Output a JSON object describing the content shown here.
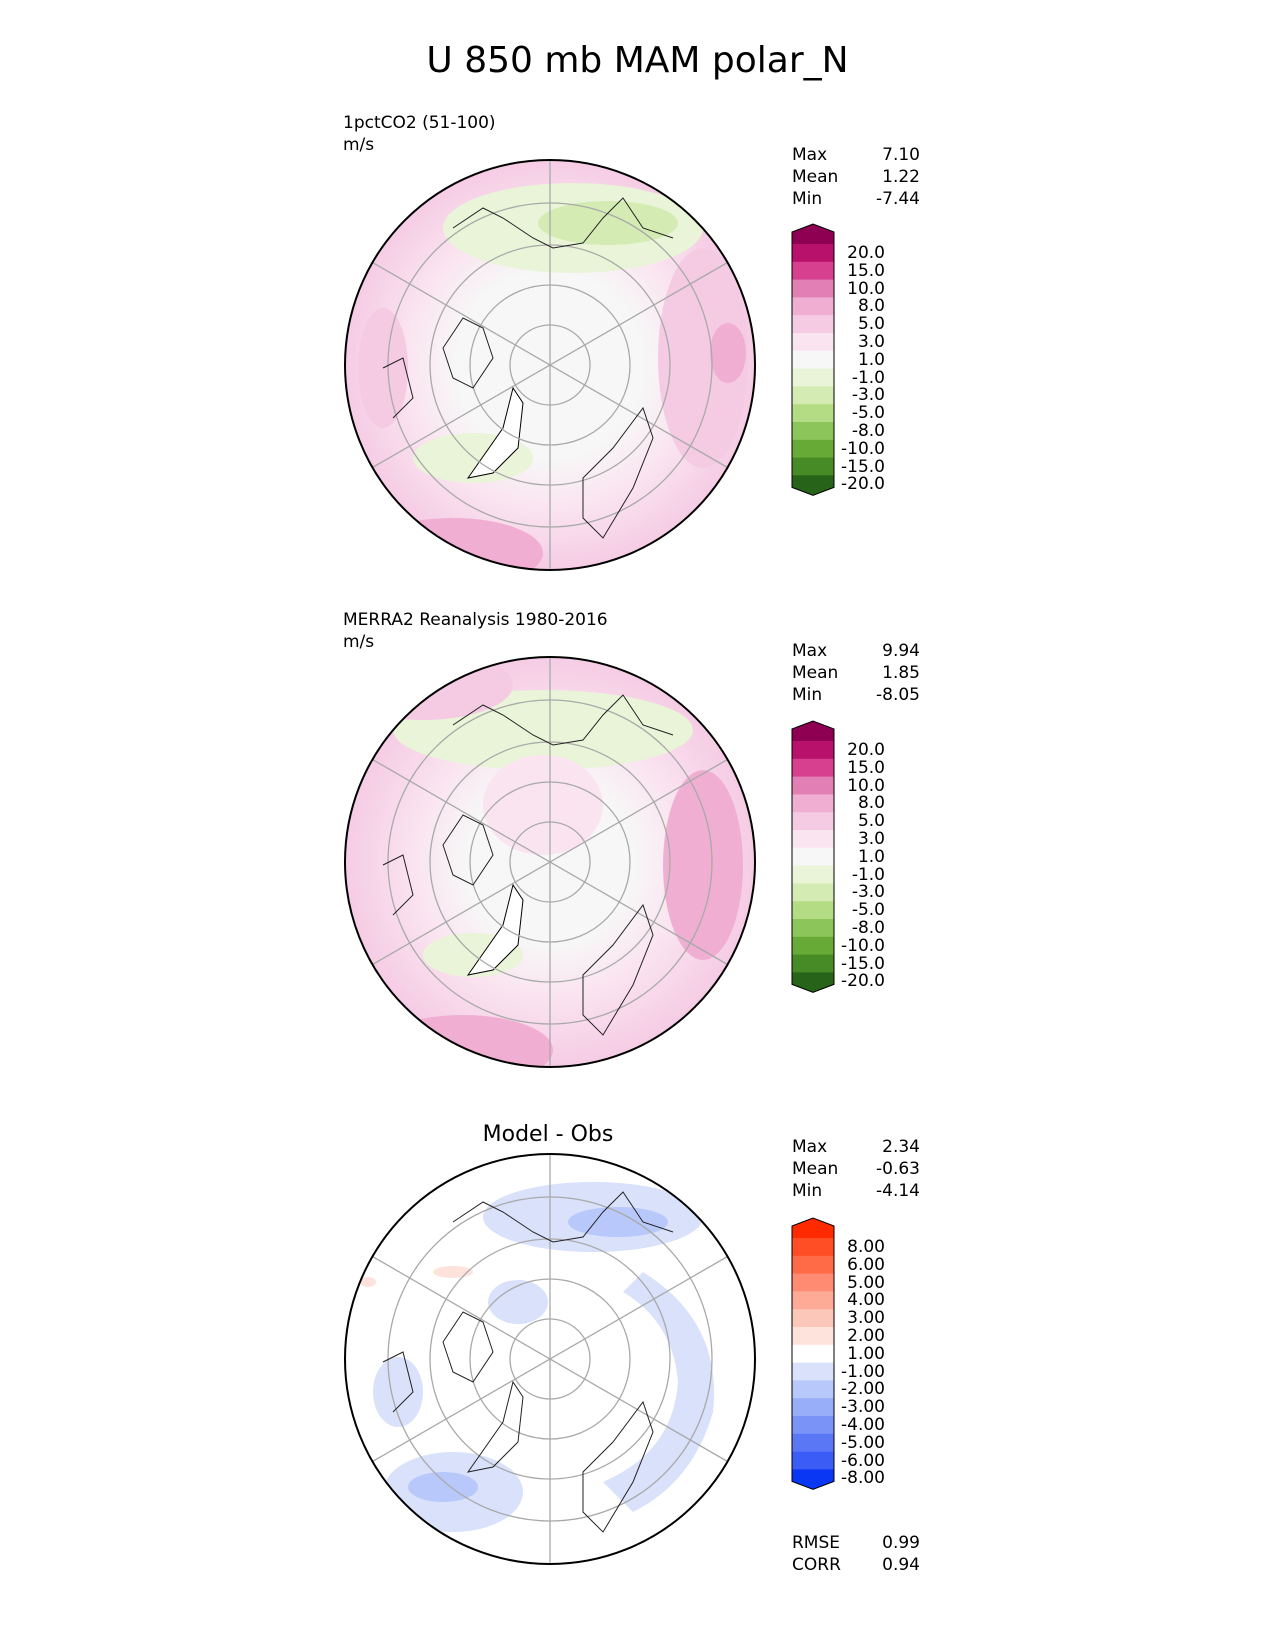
{
  "title": "U 850 mb MAM polar_N",
  "panels": [
    {
      "id": "test",
      "title_line1": "1pctCO2 (51-100)",
      "title_line2": "m/s",
      "stats": [
        {
          "label": "Max",
          "value": "7.10"
        },
        {
          "label": "Mean",
          "value": "1.22"
        },
        {
          "label": "Min",
          "value": "-7.44"
        }
      ],
      "colorbar": {
        "labels": [
          "20.0",
          "15.0",
          "10.0",
          "8.0",
          "5.0",
          "3.0",
          "1.0",
          "-1.0",
          "-3.0",
          "-5.0",
          "-8.0",
          "-10.0",
          "-15.0",
          "-20.0"
        ],
        "colors": [
          "#8e0152",
          "#b8116c",
          "#d6408f",
          "#e27fb5",
          "#f0aed3",
          "#f5cbe4",
          "#fae4f0",
          "#f7f7f7",
          "#e9f4d8",
          "#d4ecb3",
          "#b4dc84",
          "#8cc55a",
          "#67aa36",
          "#468b25",
          "#276419"
        ]
      }
    },
    {
      "id": "reference",
      "title_line1": "MERRA2 Reanalysis 1980-2016",
      "title_line2": "m/s",
      "stats": [
        {
          "label": "Max",
          "value": "9.94"
        },
        {
          "label": "Mean",
          "value": "1.85"
        },
        {
          "label": "Min",
          "value": "-8.05"
        }
      ],
      "colorbar": {
        "labels": [
          "20.0",
          "15.0",
          "10.0",
          "8.0",
          "5.0",
          "3.0",
          "1.0",
          "-1.0",
          "-3.0",
          "-5.0",
          "-8.0",
          "-10.0",
          "-15.0",
          "-20.0"
        ],
        "colors": [
          "#8e0152",
          "#b8116c",
          "#d6408f",
          "#e27fb5",
          "#f0aed3",
          "#f5cbe4",
          "#fae4f0",
          "#f7f7f7",
          "#e9f4d8",
          "#d4ecb3",
          "#b4dc84",
          "#8cc55a",
          "#67aa36",
          "#468b25",
          "#276419"
        ]
      }
    },
    {
      "id": "diff",
      "center_title": "Model - Obs",
      "stats": [
        {
          "label": "Max",
          "value": "2.34"
        },
        {
          "label": "Mean",
          "value": "-0.63"
        },
        {
          "label": "Min",
          "value": "-4.14"
        }
      ],
      "colorbar": {
        "labels": [
          "8.00",
          "6.00",
          "5.00",
          "4.00",
          "3.00",
          "2.00",
          "1.00",
          "-1.00",
          "-2.00",
          "-3.00",
          "-4.00",
          "-5.00",
          "-6.00",
          "-8.00"
        ],
        "colors": [
          "#ff2a00",
          "#ff4d26",
          "#ff6a47",
          "#ff8c72",
          "#fdaa96",
          "#fcc6b8",
          "#fde3db",
          "#ffffff",
          "#d9e1fb",
          "#b9c8fa",
          "#98aef9",
          "#7a93f7",
          "#5a78f6",
          "#3b5cf5",
          "#0a37f4"
        ]
      },
      "metrics": [
        {
          "label": "RMSE",
          "value": "0.99"
        },
        {
          "label": "CORR",
          "value": "0.94"
        }
      ]
    }
  ]
}
